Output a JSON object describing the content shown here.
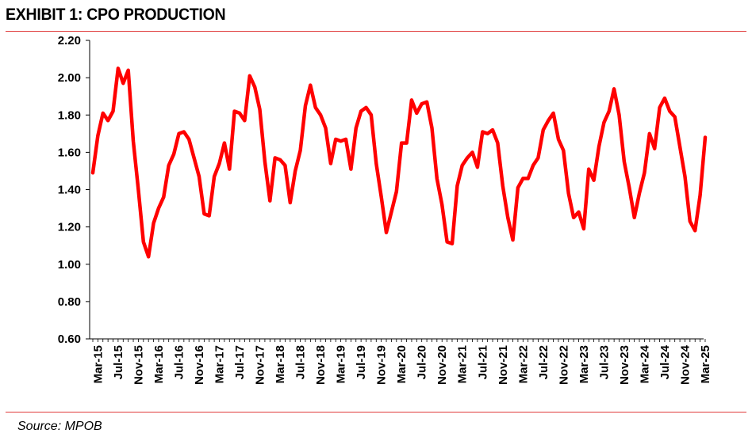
{
  "title": "EXHIBIT 1: CPO PRODUCTION",
  "source": "Source: MPOB",
  "chart_data": {
    "type": "line",
    "title": "EXHIBIT 1: CPO PRODUCTION",
    "xlabel": "",
    "ylabel": "",
    "ylim": [
      0.6,
      2.2
    ],
    "yticks": [
      "0.60",
      "0.80",
      "1.00",
      "1.20",
      "1.40",
      "1.60",
      "1.80",
      "2.00",
      "2.20"
    ],
    "xticks": [
      "Mar-15",
      "Jul-15",
      "Nov-15",
      "Mar-16",
      "Jul-16",
      "Nov-16",
      "Mar-17",
      "Jul-17",
      "Nov-17",
      "Mar-18",
      "Jul-18",
      "Nov-18",
      "Mar-19",
      "Jul-19",
      "Nov-19",
      "Mar-20",
      "Jul-20",
      "Nov-20",
      "Mar-21",
      "Jul-21",
      "Nov-21",
      "Mar-22",
      "Jul-22",
      "Nov-22",
      "Mar-23",
      "Jul-23",
      "Nov-23",
      "Mar-24",
      "Jul-24",
      "Nov-24",
      "Mar-25"
    ],
    "grid": false,
    "line_color": "#ff0000",
    "series": [
      {
        "x_start": "Feb-15",
        "x_end": "Apr-25",
        "values": [
          1.49,
          1.69,
          1.81,
          1.77,
          1.82,
          2.05,
          1.97,
          2.04,
          1.66,
          1.4,
          1.12,
          1.04,
          1.22,
          1.3,
          1.36,
          1.53,
          1.59,
          1.7,
          1.71,
          1.67,
          1.57,
          1.47,
          1.27,
          1.26,
          1.47,
          1.54,
          1.65,
          1.51,
          1.82,
          1.81,
          1.77,
          2.01,
          1.95,
          1.83,
          1.55,
          1.34,
          1.57,
          1.56,
          1.53,
          1.33,
          1.5,
          1.61,
          1.85,
          1.96,
          1.84,
          1.8,
          1.73,
          1.54,
          1.67,
          1.66,
          1.67,
          1.51,
          1.73,
          1.82,
          1.84,
          1.8,
          1.54,
          1.36,
          1.17,
          1.28,
          1.39,
          1.65,
          1.65,
          1.88,
          1.81,
          1.86,
          1.87,
          1.73,
          1.46,
          1.32,
          1.12,
          1.11,
          1.42,
          1.53,
          1.57,
          1.6,
          1.52,
          1.71,
          1.7,
          1.72,
          1.65,
          1.42,
          1.25,
          1.13,
          1.41,
          1.46,
          1.46,
          1.53,
          1.57,
          1.72,
          1.77,
          1.81,
          1.67,
          1.61,
          1.38,
          1.25,
          1.28,
          1.19,
          1.51,
          1.45,
          1.63,
          1.76,
          1.82,
          1.94,
          1.8,
          1.55,
          1.41,
          1.25,
          1.38,
          1.49,
          1.7,
          1.62,
          1.84,
          1.89,
          1.82,
          1.79,
          1.63,
          1.47,
          1.23,
          1.18,
          1.37,
          1.68
        ]
      }
    ]
  }
}
